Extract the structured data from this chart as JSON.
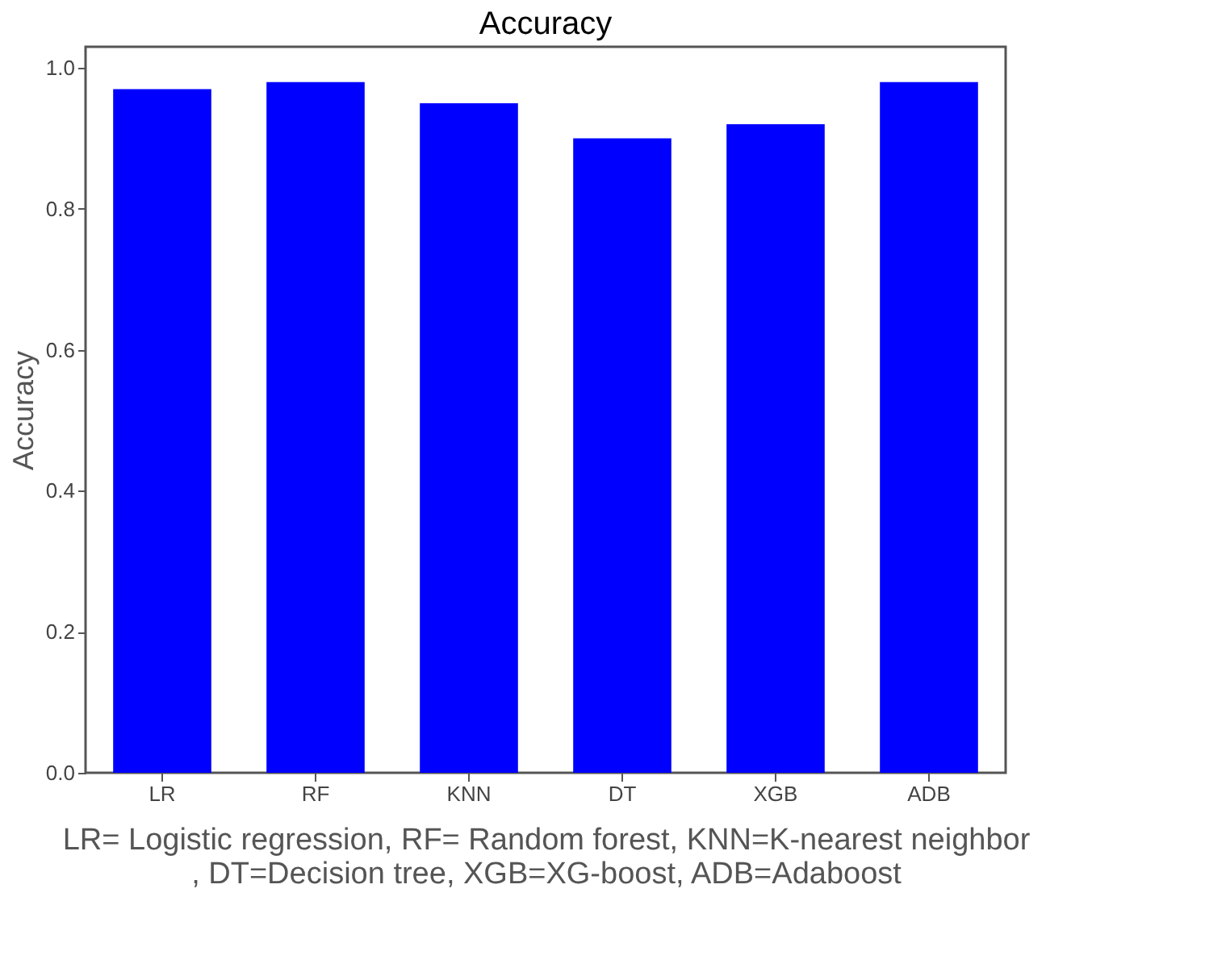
{
  "chart_data": {
    "type": "bar",
    "title": "Accuracy",
    "ylabel": "Accuracy",
    "xlabel": "LR= Logistic regression, RF= Random forest, KNN=K-nearest neighbor\n, DT=Decision tree, XGB=XG-boost, ADB=Adaboost",
    "categories": [
      "LR",
      "RF",
      "KNN",
      "DT",
      "XGB",
      "ADB"
    ],
    "values": [
      0.97,
      0.98,
      0.95,
      0.9,
      0.92,
      0.98
    ],
    "color": "#0000ff",
    "ylim": [
      0,
      1.03
    ],
    "yticks": [
      {
        "value": 0,
        "label": "0.0"
      },
      0.2,
      0.4,
      0.6,
      0.8,
      {
        "value": 1,
        "label": "1.0"
      }
    ],
    "grid": false
  }
}
